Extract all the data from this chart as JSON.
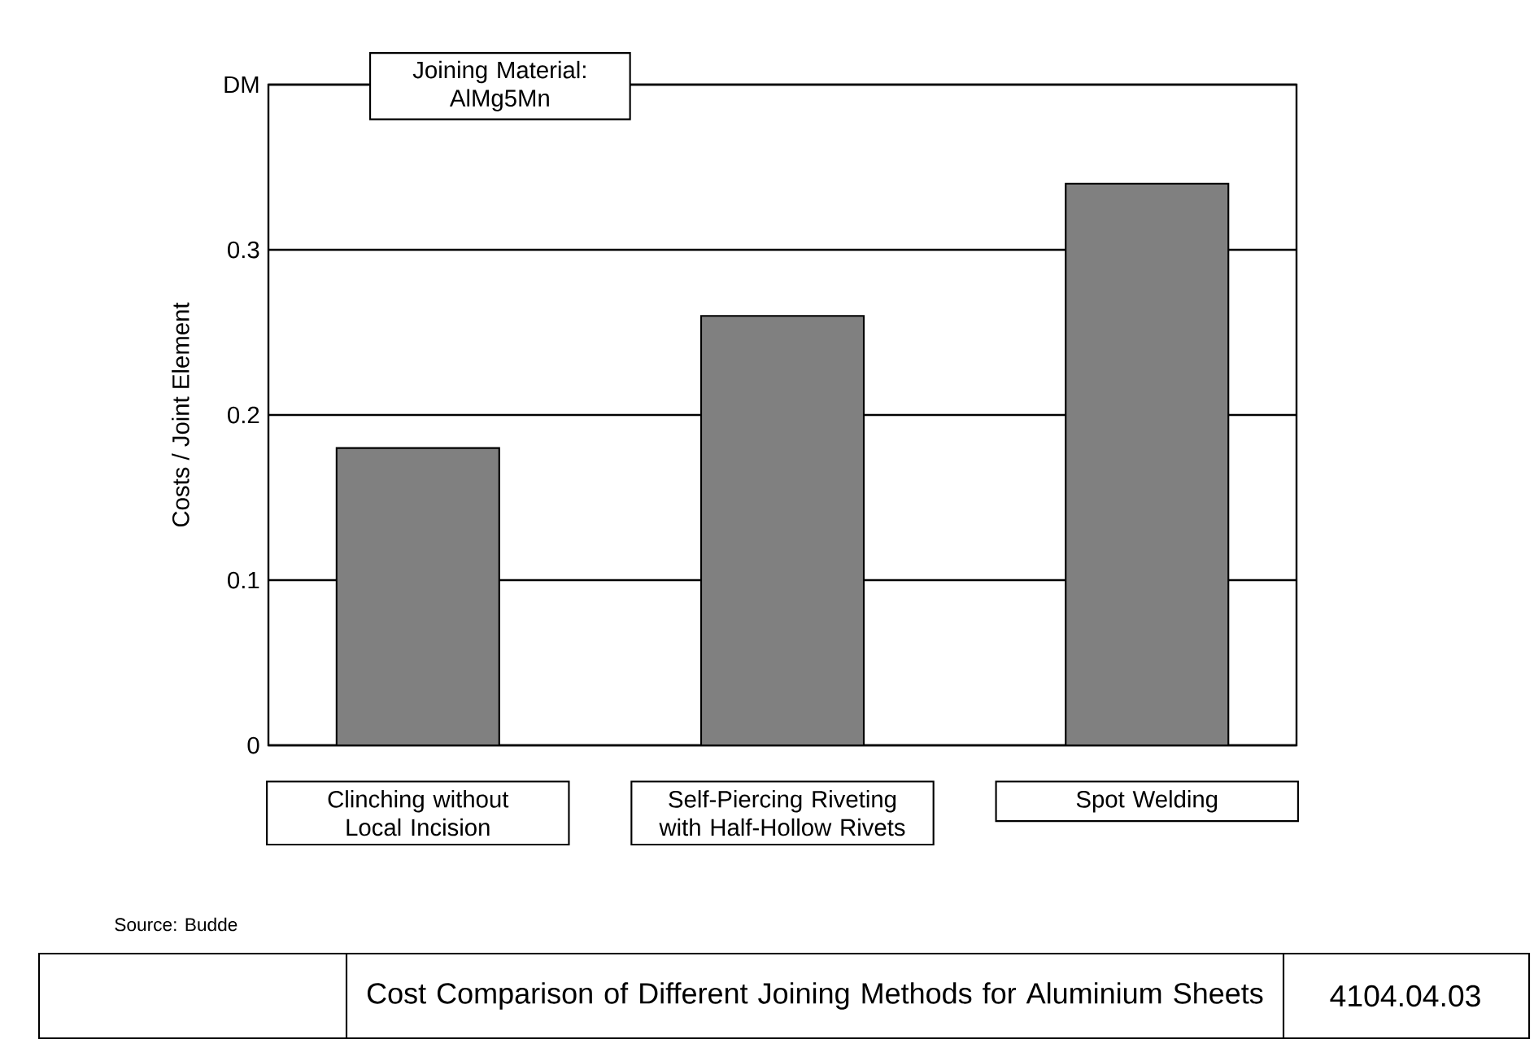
{
  "chart_data": {
    "type": "bar",
    "title": "Cost Comparison of Different Joining Methods for Aluminium Sheets",
    "ylabel": "Costs / Joint Element",
    "categories": [
      "Clinching without Local Incision",
      "Self-Piercing Riveting with Half-Hollow Rivets",
      "Spot Welding"
    ],
    "values": [
      0.18,
      0.26,
      0.34
    ],
    "color": "#808080",
    "ylim": [
      0,
      0.4
    ],
    "yticks": [
      0,
      0.1,
      0.2,
      0.3,
      {
        "value": 0.4,
        "label": "DM"
      }
    ],
    "grid": "y",
    "annotations": [
      "Joining Material: AlMg5Mn",
      "Source: Budde",
      "4104.04.03"
    ]
  }
}
